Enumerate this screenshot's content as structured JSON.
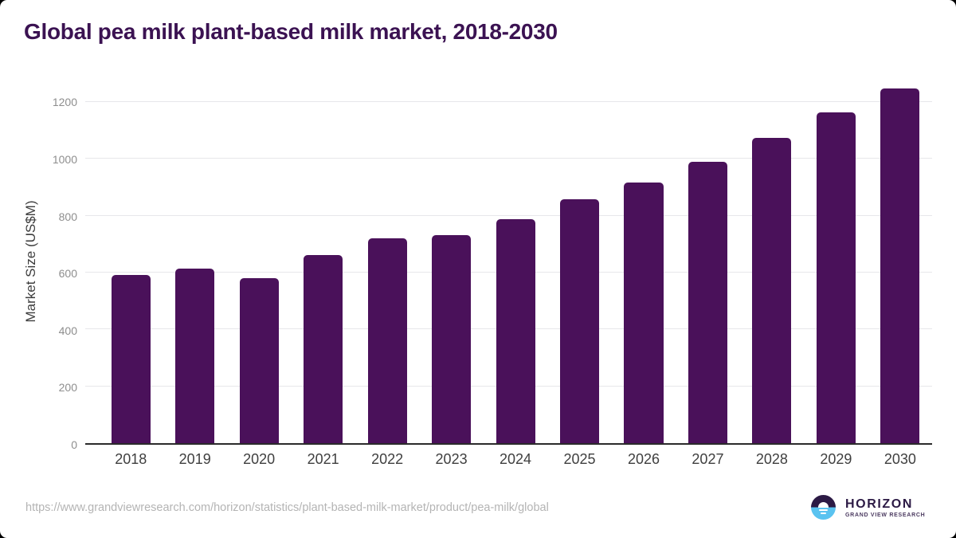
{
  "title": "Global pea milk plant-based milk market, 2018-2030",
  "footer": {
    "source_url": "https://www.grandviewresearch.com/horizon/statistics/plant-based-milk-market/product/pea-milk/global"
  },
  "logo": {
    "name": "HORIZON",
    "tagline": "GRAND VIEW RESEARCH"
  },
  "colors": {
    "title_color": "#3B1252",
    "bar_color": "#4A115A",
    "axis_line_color": "#2b2b2b",
    "gridline_color": "#e7e7ea",
    "tick_color": "#8e8e8e",
    "xlabel_color": "#3f3f3f",
    "axis_title_color": "#3d3d3d",
    "url_color": "#b4b4b4",
    "logo_purple": "#2C1A45",
    "logo_blue": "#5AC3F0"
  },
  "chart_data": {
    "type": "bar",
    "title": "Global pea milk plant-based milk market, 2018-2030",
    "categories": [
      "2018",
      "2019",
      "2020",
      "2021",
      "2022",
      "2023",
      "2024",
      "2025",
      "2026",
      "2027",
      "2028",
      "2029",
      "2030"
    ],
    "values": [
      593,
      613,
      581,
      661,
      721,
      731,
      788,
      858,
      917,
      990,
      1074,
      1164,
      1248
    ],
    "xlabel": "",
    "ylabel": "Market Size (US$M)",
    "ylim": [
      0,
      1265
    ],
    "yticks": [
      0,
      200,
      400,
      600,
      800,
      1000,
      1200
    ],
    "grid": true,
    "legend": false
  }
}
